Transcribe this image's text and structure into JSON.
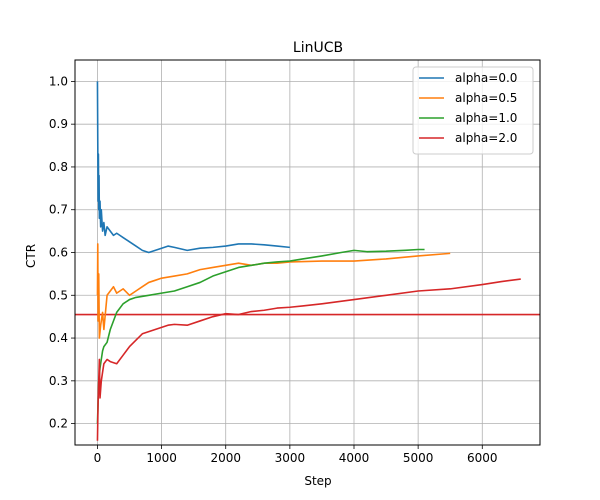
{
  "chart_data": {
    "type": "line",
    "title": "LinUCB",
    "xlabel": "Step",
    "ylabel": "CTR",
    "xlim": [
      -350,
      6900
    ],
    "ylim": [
      0.15,
      1.05
    ],
    "xticks": [
      0,
      1000,
      2000,
      3000,
      4000,
      5000,
      6000
    ],
    "xtick_labels": [
      "0",
      "1000",
      "2000",
      "3000",
      "4000",
      "5000",
      "6000"
    ],
    "yticks": [
      0.2,
      0.3,
      0.4,
      0.5,
      0.6,
      0.7,
      0.8,
      0.9,
      1.0
    ],
    "ytick_labels": [
      "0.2",
      "0.3",
      "0.4",
      "0.5",
      "0.6",
      "0.7",
      "0.8",
      "0.9",
      "1.0"
    ],
    "grid": true,
    "legend_position": "upper right",
    "reference_line": {
      "y": 0.455,
      "color": "#d62728"
    },
    "series": [
      {
        "name": "alpha=0.0",
        "color": "#1f77b4",
        "points": [
          [
            0,
            1.0
          ],
          [
            5,
            0.86
          ],
          [
            10,
            0.72
          ],
          [
            15,
            0.83
          ],
          [
            20,
            0.7
          ],
          [
            25,
            0.78
          ],
          [
            30,
            0.68
          ],
          [
            40,
            0.72
          ],
          [
            50,
            0.66
          ],
          [
            60,
            0.7
          ],
          [
            80,
            0.65
          ],
          [
            100,
            0.67
          ],
          [
            120,
            0.64
          ],
          [
            150,
            0.66
          ],
          [
            200,
            0.65
          ],
          [
            250,
            0.64
          ],
          [
            300,
            0.645
          ],
          [
            350,
            0.64
          ],
          [
            400,
            0.635
          ],
          [
            450,
            0.63
          ],
          [
            500,
            0.625
          ],
          [
            600,
            0.615
          ],
          [
            700,
            0.605
          ],
          [
            800,
            0.6
          ],
          [
            900,
            0.605
          ],
          [
            1000,
            0.61
          ],
          [
            1100,
            0.615
          ],
          [
            1200,
            0.612
          ],
          [
            1400,
            0.605
          ],
          [
            1600,
            0.61
          ],
          [
            1800,
            0.612
          ],
          [
            2000,
            0.615
          ],
          [
            2200,
            0.62
          ],
          [
            2400,
            0.62
          ],
          [
            2600,
            0.618
          ],
          [
            2800,
            0.615
          ],
          [
            3000,
            0.612
          ]
        ]
      },
      {
        "name": "alpha=0.5",
        "color": "#ff7f0e",
        "points": [
          [
            0,
            0.5
          ],
          [
            5,
            0.62
          ],
          [
            10,
            0.44
          ],
          [
            20,
            0.55
          ],
          [
            30,
            0.4
          ],
          [
            50,
            0.43
          ],
          [
            80,
            0.46
          ],
          [
            100,
            0.42
          ],
          [
            150,
            0.5
          ],
          [
            200,
            0.51
          ],
          [
            250,
            0.52
          ],
          [
            300,
            0.505
          ],
          [
            400,
            0.515
          ],
          [
            500,
            0.5
          ],
          [
            600,
            0.51
          ],
          [
            700,
            0.52
          ],
          [
            800,
            0.53
          ],
          [
            900,
            0.535
          ],
          [
            1000,
            0.54
          ],
          [
            1200,
            0.545
          ],
          [
            1400,
            0.55
          ],
          [
            1600,
            0.56
          ],
          [
            1800,
            0.565
          ],
          [
            2000,
            0.57
          ],
          [
            2200,
            0.575
          ],
          [
            2400,
            0.57
          ],
          [
            2600,
            0.575
          ],
          [
            2800,
            0.575
          ],
          [
            3000,
            0.578
          ],
          [
            3500,
            0.58
          ],
          [
            4000,
            0.58
          ],
          [
            4500,
            0.585
          ],
          [
            5000,
            0.592
          ],
          [
            5500,
            0.598
          ]
        ]
      },
      {
        "name": "alpha=1.0",
        "color": "#2ca02c",
        "points": [
          [
            0,
            0.2
          ],
          [
            10,
            0.25
          ],
          [
            20,
            0.3
          ],
          [
            40,
            0.33
          ],
          [
            60,
            0.35
          ],
          [
            80,
            0.37
          ],
          [
            100,
            0.38
          ],
          [
            150,
            0.39
          ],
          [
            200,
            0.42
          ],
          [
            300,
            0.46
          ],
          [
            400,
            0.48
          ],
          [
            500,
            0.49
          ],
          [
            600,
            0.495
          ],
          [
            800,
            0.5
          ],
          [
            1000,
            0.505
          ],
          [
            1200,
            0.51
          ],
          [
            1400,
            0.52
          ],
          [
            1600,
            0.53
          ],
          [
            1800,
            0.545
          ],
          [
            2000,
            0.555
          ],
          [
            2200,
            0.565
          ],
          [
            2400,
            0.57
          ],
          [
            2600,
            0.575
          ],
          [
            2800,
            0.578
          ],
          [
            3000,
            0.58
          ],
          [
            3200,
            0.585
          ],
          [
            3500,
            0.592
          ],
          [
            3800,
            0.6
          ],
          [
            4000,
            0.605
          ],
          [
            4200,
            0.602
          ],
          [
            4500,
            0.603
          ],
          [
            4800,
            0.605
          ],
          [
            5000,
            0.607
          ],
          [
            5100,
            0.607
          ]
        ]
      },
      {
        "name": "alpha=2.0",
        "color": "#d62728",
        "points": [
          [
            0,
            0.16
          ],
          [
            10,
            0.25
          ],
          [
            20,
            0.3
          ],
          [
            30,
            0.35
          ],
          [
            40,
            0.26
          ],
          [
            60,
            0.3
          ],
          [
            80,
            0.32
          ],
          [
            100,
            0.34
          ],
          [
            150,
            0.35
          ],
          [
            200,
            0.345
          ],
          [
            300,
            0.34
          ],
          [
            400,
            0.36
          ],
          [
            500,
            0.38
          ],
          [
            600,
            0.395
          ],
          [
            700,
            0.41
          ],
          [
            800,
            0.415
          ],
          [
            900,
            0.42
          ],
          [
            1000,
            0.425
          ],
          [
            1100,
            0.43
          ],
          [
            1200,
            0.432
          ],
          [
            1400,
            0.43
          ],
          [
            1600,
            0.44
          ],
          [
            1800,
            0.45
          ],
          [
            2000,
            0.457
          ],
          [
            2200,
            0.455
          ],
          [
            2400,
            0.462
          ],
          [
            2600,
            0.465
          ],
          [
            2800,
            0.47
          ],
          [
            3000,
            0.472
          ],
          [
            3200,
            0.475
          ],
          [
            3500,
            0.48
          ],
          [
            4000,
            0.49
          ],
          [
            4500,
            0.5
          ],
          [
            5000,
            0.51
          ],
          [
            5500,
            0.515
          ],
          [
            6000,
            0.525
          ],
          [
            6300,
            0.532
          ],
          [
            6600,
            0.538
          ]
        ]
      }
    ]
  }
}
